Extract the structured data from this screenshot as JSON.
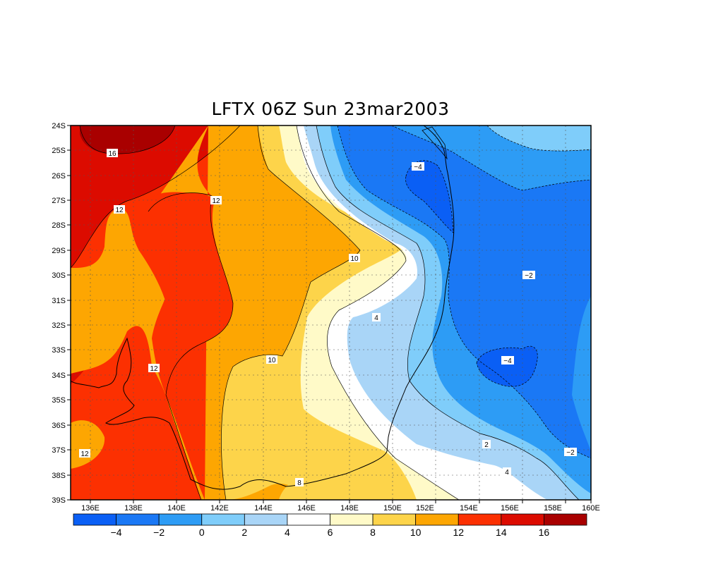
{
  "title": "LFTX 06Z Sun 23mar2003",
  "lat_ticks": [
    "24S",
    "25S",
    "26S",
    "27S",
    "28S",
    "29S",
    "30S",
    "31S",
    "32S",
    "33S",
    "34S",
    "35S",
    "36S",
    "37S",
    "38S",
    "39S"
  ],
  "lon_ticks": [
    "136E",
    "138E",
    "140E",
    "142E",
    "144E",
    "146E",
    "148E",
    "150E",
    "152E",
    "154E",
    "156E",
    "158E",
    "160E"
  ],
  "colorbar": {
    "labels": [
      "−4",
      "−2",
      "0",
      "2",
      "4",
      "6",
      "8",
      "10",
      "12",
      "14",
      "16"
    ],
    "colors": [
      "#0a5ff5",
      "#1a78f5",
      "#2d9cf5",
      "#7fcdfa",
      "#a9d5f7",
      "#ffffff",
      "#fffac8",
      "#fdd44a",
      "#fda602",
      "#fc3001",
      "#dc0b00",
      "#a90000"
    ]
  },
  "contour_labels": [
    "16",
    "12",
    "12",
    "12",
    "10",
    "10",
    "12",
    "8",
    "4",
    "−4",
    "−2",
    "−4",
    "2",
    "−2",
    "4"
  ]
}
